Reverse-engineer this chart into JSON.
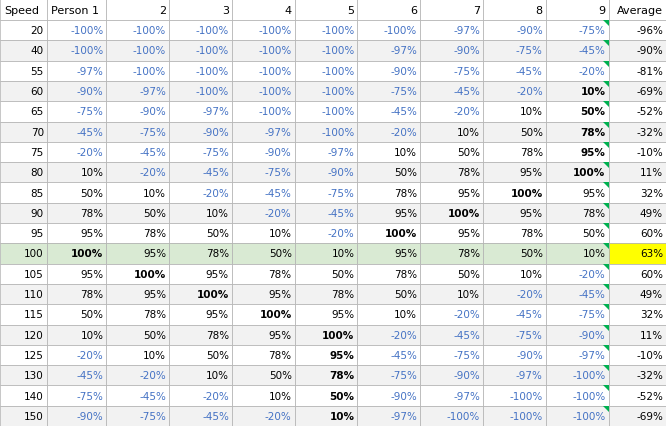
{
  "speeds": [
    20,
    40,
    55,
    60,
    65,
    70,
    75,
    80,
    85,
    90,
    95,
    100,
    105,
    110,
    115,
    120,
    125,
    130,
    140,
    150
  ],
  "persons": [
    "Person 1",
    "2",
    "3",
    "4",
    "5",
    "6",
    "7",
    "8",
    "9",
    "Average"
  ],
  "table": [
    [
      -100,
      -100,
      -100,
      -100,
      -100,
      -100,
      -97,
      -90,
      -75,
      -96
    ],
    [
      -100,
      -100,
      -100,
      -100,
      -100,
      -97,
      -90,
      -75,
      -45,
      -90
    ],
    [
      -97,
      -100,
      -100,
      -100,
      -100,
      -90,
      -75,
      -45,
      -20,
      -81
    ],
    [
      -90,
      -97,
      -100,
      -100,
      -100,
      -75,
      -45,
      -20,
      10,
      -69
    ],
    [
      -75,
      -90,
      -97,
      -100,
      -100,
      -45,
      -20,
      10,
      50,
      -52
    ],
    [
      -45,
      -75,
      -90,
      -97,
      -100,
      -20,
      10,
      50,
      78,
      -32
    ],
    [
      -20,
      -45,
      -75,
      -90,
      -97,
      10,
      50,
      78,
      95,
      -10
    ],
    [
      10,
      -20,
      -45,
      -75,
      -90,
      50,
      78,
      95,
      100,
      11
    ],
    [
      50,
      10,
      -20,
      -45,
      -75,
      78,
      95,
      100,
      95,
      32
    ],
    [
      78,
      50,
      10,
      -20,
      -45,
      95,
      100,
      95,
      78,
      49
    ],
    [
      95,
      78,
      50,
      10,
      -20,
      100,
      95,
      78,
      50,
      60
    ],
    [
      100,
      95,
      78,
      50,
      10,
      95,
      78,
      50,
      10,
      63
    ],
    [
      95,
      100,
      95,
      78,
      50,
      78,
      50,
      10,
      -20,
      60
    ],
    [
      78,
      95,
      100,
      95,
      78,
      50,
      10,
      -20,
      -45,
      49
    ],
    [
      50,
      78,
      95,
      100,
      95,
      10,
      -20,
      -45,
      -75,
      32
    ],
    [
      10,
      50,
      78,
      95,
      100,
      -20,
      -45,
      -75,
      -90,
      11
    ],
    [
      -20,
      10,
      50,
      78,
      95,
      -45,
      -75,
      -90,
      -97,
      -10
    ],
    [
      -45,
      -20,
      10,
      50,
      78,
      -75,
      -90,
      -97,
      -100,
      -32
    ],
    [
      -75,
      -45,
      -20,
      10,
      50,
      -90,
      -97,
      -100,
      -100,
      -52
    ],
    [
      -90,
      -75,
      -45,
      -20,
      10,
      -97,
      -100,
      -100,
      -100,
      -69
    ]
  ],
  "highlight_row": 11,
  "highlight_col": 9,
  "row_bg_even": "#ffffff",
  "row_bg_odd": "#f2f2f2",
  "highlight_row_color": "#d9ead3",
  "highlight_cell_color": "#ffff00",
  "blue_text": "#4472c4",
  "green_triangle_color": "#00b050",
  "fig_width": 6.66,
  "fig_height": 4.27,
  "dpi": 100,
  "fontsize": 7.5,
  "header_fontsize": 8
}
